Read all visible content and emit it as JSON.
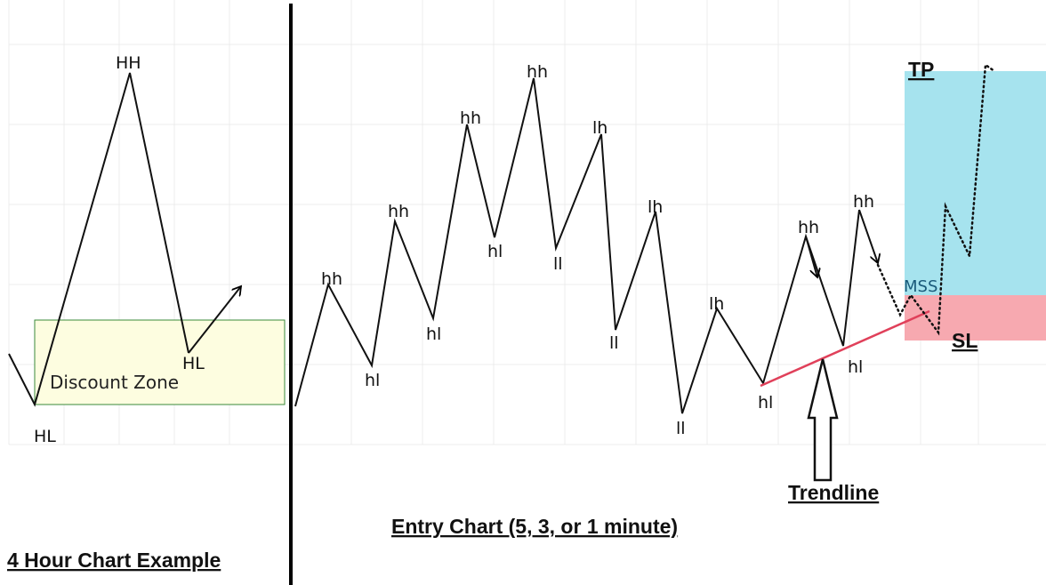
{
  "left_panel": {
    "caption": "4 Hour Chart Example",
    "zone_label": "Discount Zone",
    "points": [
      {
        "label": "HL"
      },
      {
        "label": "HH"
      },
      {
        "label": "HL"
      }
    ]
  },
  "right_panel": {
    "caption": "Entry Chart (5, 3, or 1 minute)",
    "points": [
      {
        "label": "hh"
      },
      {
        "label": "hl"
      },
      {
        "label": "hh"
      },
      {
        "label": "hl"
      },
      {
        "label": "hh"
      },
      {
        "label": "hl"
      },
      {
        "label": "hh"
      },
      {
        "label": "ll"
      },
      {
        "label": "lh"
      },
      {
        "label": "ll"
      },
      {
        "label": "lh"
      },
      {
        "label": "ll"
      },
      {
        "label": "lh"
      },
      {
        "label": "hl"
      },
      {
        "label": "hh"
      },
      {
        "label": "hl"
      },
      {
        "label": "hh"
      }
    ],
    "trendline_label": "Trendline",
    "mss_label": "MSS",
    "tp_label": "TP",
    "sl_label": "SL"
  },
  "colors": {
    "zone_fill": "#fdfde0",
    "zone_border": "#3a8a3a",
    "trendline": "#e0405a",
    "tp_fill": "#a6e3ee",
    "sl_fill": "#f7a9b0",
    "divider": "#000000"
  }
}
